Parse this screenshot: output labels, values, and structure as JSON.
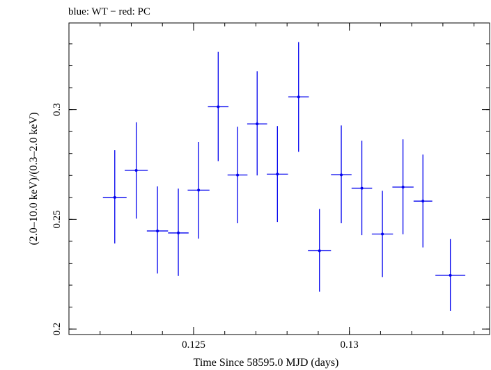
{
  "chart_data": {
    "type": "scatter",
    "title": "blue: WT − red: PC",
    "xlabel": "Time Since 58595.0 MJD (days)",
    "ylabel": "(2.0–10.0 keV)/(0.3–2.0 keV)",
    "xlim": [
      0.121,
      0.1345
    ],
    "ylim": [
      0.1975,
      0.3395
    ],
    "x_ticks": [
      {
        "v": 0.125,
        "label": "0.125"
      },
      {
        "v": 0.13,
        "label": "0.13"
      }
    ],
    "y_ticks": [
      {
        "v": 0.2,
        "label": "0.2"
      },
      {
        "v": 0.25,
        "label": "0.25"
      },
      {
        "v": 0.3,
        "label": "0.3"
      }
    ],
    "grid": false,
    "series": [
      {
        "color": "#0000ee",
        "points": [
          {
            "x": 0.12247,
            "xerr": 0.00038,
            "y": 0.26,
            "ylo": 0.239,
            "yhi": 0.2815
          },
          {
            "x": 0.12316,
            "xerr": 0.00037,
            "y": 0.2723,
            "ylo": 0.2503,
            "yhi": 0.2942
          },
          {
            "x": 0.12384,
            "xerr": 0.00034,
            "y": 0.2447,
            "ylo": 0.2253,
            "yhi": 0.265
          },
          {
            "x": 0.12451,
            "xerr": 0.00033,
            "y": 0.2438,
            "ylo": 0.2242,
            "yhi": 0.264
          },
          {
            "x": 0.12516,
            "xerr": 0.00035,
            "y": 0.2633,
            "ylo": 0.2412,
            "yhi": 0.2853
          },
          {
            "x": 0.12579,
            "xerr": 0.00033,
            "y": 0.3013,
            "ylo": 0.2765,
            "yhi": 0.3263
          },
          {
            "x": 0.12641,
            "xerr": 0.00032,
            "y": 0.2702,
            "ylo": 0.2482,
            "yhi": 0.2922
          },
          {
            "x": 0.12704,
            "xerr": 0.00032,
            "y": 0.2935,
            "ylo": 0.27,
            "yhi": 0.3175
          },
          {
            "x": 0.12769,
            "xerr": 0.00034,
            "y": 0.2706,
            "ylo": 0.2488,
            "yhi": 0.2925
          },
          {
            "x": 0.12837,
            "xerr": 0.00033,
            "y": 0.3058,
            "ylo": 0.2808,
            "yhi": 0.3308
          },
          {
            "x": 0.12904,
            "xerr": 0.00037,
            "y": 0.2357,
            "ylo": 0.217,
            "yhi": 0.2547
          },
          {
            "x": 0.12974,
            "xerr": 0.00033,
            "y": 0.2703,
            "ylo": 0.2482,
            "yhi": 0.2928
          },
          {
            "x": 0.1304,
            "xerr": 0.00033,
            "y": 0.2642,
            "ylo": 0.2428,
            "yhi": 0.2858
          },
          {
            "x": 0.13106,
            "xerr": 0.00034,
            "y": 0.2433,
            "ylo": 0.2237,
            "yhi": 0.263
          },
          {
            "x": 0.13172,
            "xerr": 0.00034,
            "y": 0.2647,
            "ylo": 0.2432,
            "yhi": 0.2865
          },
          {
            "x": 0.13236,
            "xerr": 0.0003,
            "y": 0.2583,
            "ylo": 0.2372,
            "yhi": 0.2795
          },
          {
            "x": 0.13324,
            "xerr": 0.00048,
            "y": 0.2245,
            "ylo": 0.2083,
            "yhi": 0.241
          }
        ]
      }
    ]
  }
}
